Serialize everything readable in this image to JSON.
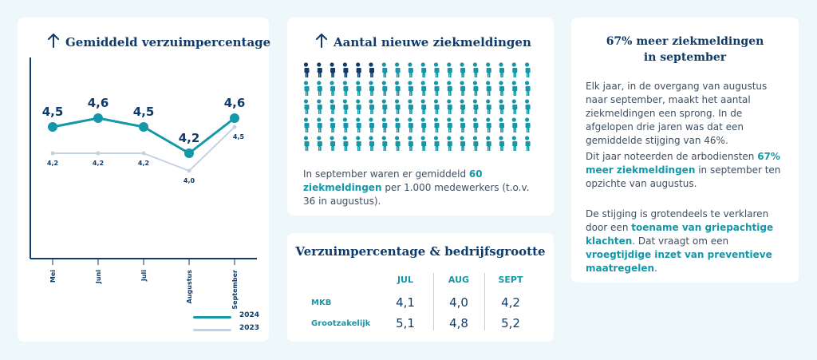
{
  "chart": {
    "title": "Gemiddeld verzuimpercentage",
    "legend": [
      {
        "label": "2024",
        "color": "#1497a8"
      },
      {
        "label": "2023",
        "color": "#c5d2e2"
      }
    ]
  },
  "chart_data": {
    "type": "line",
    "categories": [
      "Mei",
      "Juni",
      "Juli",
      "Augustus",
      "September"
    ],
    "series": [
      {
        "name": "2024",
        "values": [
          4.5,
          4.6,
          4.5,
          4.2,
          4.6
        ],
        "labels": [
          "4,5",
          "4,6",
          "4,5",
          "4,2",
          "4,6"
        ]
      },
      {
        "name": "2023",
        "values": [
          4.2,
          4.2,
          4.2,
          4.0,
          4.5
        ],
        "labels": [
          "4,2",
          "4,2",
          "4,2",
          "4,0",
          "4,5"
        ]
      }
    ],
    "title": "Gemiddeld verzuimpercentage",
    "xlabel": "",
    "ylabel": "",
    "ylim": [
      3.0,
      5.2
    ],
    "legend_position": "bottom-right"
  },
  "people": {
    "title": "Aantal nieuwe ziekmeldingen",
    "total": 90,
    "highlighted": 6,
    "highlight_color": "#0f3b6a",
    "base_color": "#1497a8",
    "caption": {
      "pre": "In september waren er gemiddeld ",
      "highlight": "60 ziekmeldingen",
      "post": " per 1.000 medewerkers (t.o.v. 36 in augustus)."
    }
  },
  "table": {
    "title": "Verzuimpercentage & bedrijfsgrootte",
    "columns": [
      "JUL",
      "AUG",
      "SEPT"
    ],
    "rows": [
      {
        "label": "MKB",
        "values": [
          "4,1",
          "4,0",
          "4,2"
        ]
      },
      {
        "label": "Grootzakelijk",
        "values": [
          "5,1",
          "4,8",
          "5,2"
        ]
      }
    ]
  },
  "text": {
    "title_line1": "67% meer ziekmeldingen",
    "title_line2": "in september",
    "p1": "Elk jaar, in de overgang van augustus naar september, maakt het aantal ziekmeldingen een sprong. In de afgelopen drie jaren was dat een gemiddelde stijging van 46%.",
    "p2_pre": "Dit jaar noteerden de arbodiensten ",
    "p2_hl": "67% meer ziekmeldingen",
    "p2_post": " in september ten opzichte van augustus.",
    "p3_pre": "De stijging is grotendeels te verklaren door een ",
    "p3_hl1": "toename van griepachtige klachten",
    "p3_mid": ". Dat vraagt om een ",
    "p3_hl2": "vroegtijdige inzet van preventieve maatregelen",
    "p3_post": "."
  },
  "colors": {
    "navy": "#0f3b6a",
    "teal": "#1497a8",
    "light_line": "#c5d2e2",
    "background": "#eef7fa"
  }
}
